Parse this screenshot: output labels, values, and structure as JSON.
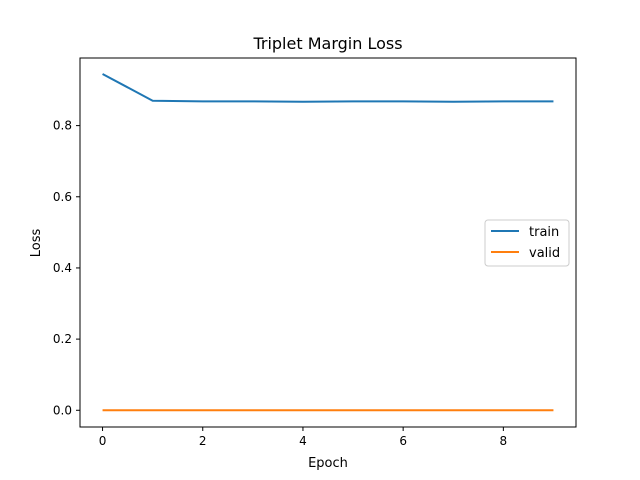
{
  "chart_data": {
    "type": "line",
    "title": "Triplet Margin Loss",
    "xlabel": "Epoch",
    "ylabel": "Loss",
    "xlim": [
      -0.45,
      9.45
    ],
    "ylim": [
      -0.047,
      0.99
    ],
    "xticks": [
      0,
      2,
      4,
      6,
      8
    ],
    "xtick_labels": [
      "0",
      "2",
      "4",
      "6",
      "8"
    ],
    "yticks": [
      0.0,
      0.2,
      0.4,
      0.6,
      0.8
    ],
    "ytick_labels": [
      "0.0",
      "0.2",
      "0.4",
      "0.6",
      "0.8"
    ],
    "grid": false,
    "legend_position": "center-right",
    "x": [
      0,
      1,
      2,
      3,
      4,
      5,
      6,
      7,
      8,
      9
    ],
    "series": [
      {
        "name": "train",
        "color": "#1f77b4",
        "values": [
          0.945,
          0.87,
          0.868,
          0.868,
          0.867,
          0.868,
          0.868,
          0.867,
          0.868,
          0.868
        ]
      },
      {
        "name": "valid",
        "color": "#ff7f0e",
        "values": [
          0.0,
          0.0,
          0.0,
          0.0,
          0.0,
          0.0,
          0.0,
          0.0,
          0.0,
          0.0
        ]
      }
    ]
  }
}
